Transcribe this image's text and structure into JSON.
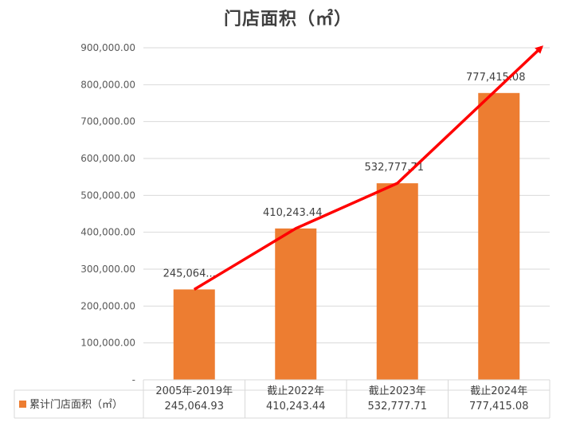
{
  "chart_data": {
    "type": "bar",
    "title": "门店面积（㎡）",
    "categories": [
      "2005年-2019年",
      "截止2022年",
      "截止2023年",
      "截止2024年"
    ],
    "series": [
      {
        "name": "累计门店面积（㎡）",
        "values": [
          245064.93,
          410243.44,
          532777.71,
          777415.08
        ],
        "color": "#ED7D31"
      }
    ],
    "data_labels": [
      "245,064....",
      "410,243.44",
      "532,777.71",
      "777,415.08"
    ],
    "table_values": [
      "245,064.93",
      "410,243.44",
      "532,777.71",
      "777,415.08"
    ],
    "y_ticks": [
      "-",
      "100,000.00",
      "200,000.00",
      "300,000.00",
      "400,000.00",
      "500,000.00",
      "600,000.00",
      "700,000.00",
      "800,000.00",
      "900,000.00"
    ],
    "ylim": [
      0,
      900000
    ],
    "grid": true,
    "legend_placement": "data-table-left",
    "data_table": true,
    "trend_arrow": {
      "color": "#FF0000",
      "direction": "up-right"
    },
    "gridline_color": "#D9D9D9"
  }
}
